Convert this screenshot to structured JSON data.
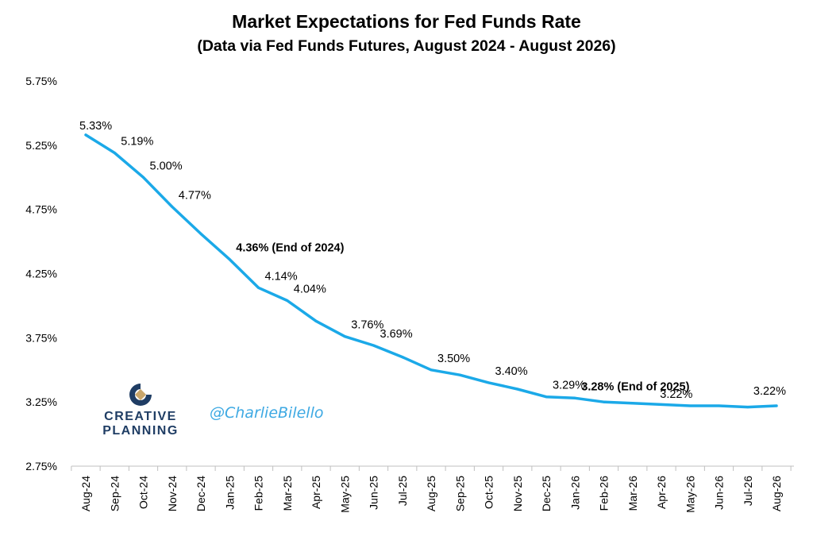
{
  "chart_data": {
    "type": "line",
    "title": "Market Expectations for Fed Funds Rate",
    "subtitle": "(Data via Fed Funds Futures, August 2024 - August 2026)",
    "categories": [
      "Aug-24",
      "Sep-24",
      "Oct-24",
      "Nov-24",
      "Dec-24",
      "Jan-25",
      "Feb-25",
      "Mar-25",
      "Apr-25",
      "May-25",
      "Jun-25",
      "Jul-25",
      "Aug-25",
      "Sep-25",
      "Oct-25",
      "Nov-25",
      "Dec-25",
      "Jan-26",
      "Feb-26",
      "Mar-26",
      "Apr-26",
      "May-26",
      "Jun-26",
      "Jul-26",
      "Aug-26"
    ],
    "series": [
      {
        "values": [
          5.33,
          5.19,
          5.0,
          4.77,
          4.56,
          4.36,
          4.14,
          4.04,
          3.88,
          3.76,
          3.69,
          3.6,
          3.5,
          3.46,
          3.4,
          3.35,
          3.29,
          3.28,
          3.25,
          3.24,
          3.23,
          3.22,
          3.22,
          3.21,
          3.22
        ],
        "color": "#1ba9e8"
      }
    ],
    "y_ticks": [
      "5.75%",
      "5.25%",
      "4.75%",
      "4.25%",
      "3.75%",
      "3.25%",
      "2.75%"
    ],
    "ylim": [
      2.75,
      5.75
    ],
    "grid": false,
    "data_labels": [
      {
        "index": 0,
        "text": "5.33%",
        "bold": false
      },
      {
        "index": 1,
        "text": "5.19%",
        "bold": false
      },
      {
        "index": 2,
        "text": "5.00%",
        "bold": false
      },
      {
        "index": 3,
        "text": "4.77%",
        "bold": false
      },
      {
        "index": 5,
        "text": "4.36% (End of 2024)",
        "bold": true
      },
      {
        "index": 6,
        "text": "4.14%",
        "bold": false
      },
      {
        "index": 7,
        "text": "4.04%",
        "bold": false
      },
      {
        "index": 9,
        "text": "3.76%",
        "bold": false
      },
      {
        "index": 10,
        "text": "3.69%",
        "bold": false
      },
      {
        "index": 12,
        "text": "3.50%",
        "bold": false
      },
      {
        "index": 14,
        "text": "3.40%",
        "bold": false
      },
      {
        "index": 16,
        "text": "3.29%",
        "bold": false
      },
      {
        "index": 17,
        "text": "3.28% (End of 2025)",
        "bold": true
      },
      {
        "index": 21,
        "text": "3.22%",
        "bold": false
      },
      {
        "index": 24,
        "text": "3.22%",
        "bold": false
      }
    ]
  },
  "branding": {
    "logo_line1": "CREATIVE",
    "logo_line2": "PLANNING",
    "handle": "@CharlieBilello",
    "logo_colors": [
      "#1f3d64",
      "#c9a66b"
    ]
  }
}
